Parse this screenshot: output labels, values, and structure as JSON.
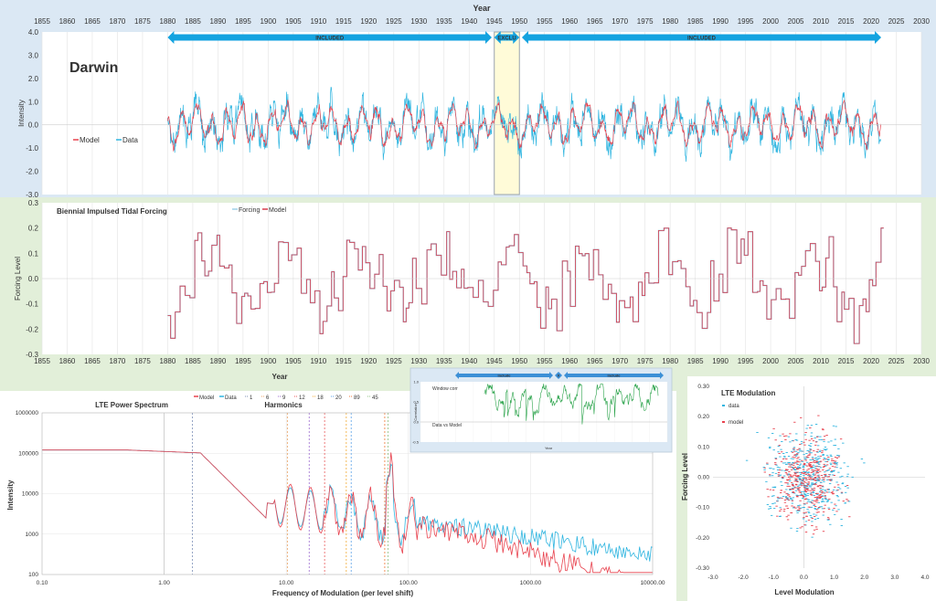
{
  "chart_data": [
    {
      "type": "line",
      "panel": "darwin",
      "title": "Darwin",
      "xlabel": "Year",
      "ylabel": "Intensity",
      "xlim": [
        1855,
        2030
      ],
      "ylim": [
        -3.0,
        4.0
      ],
      "xticks": [
        "1855",
        "1860",
        "1865",
        "1870",
        "1875",
        "1880",
        "1885",
        "1890",
        "1895",
        "1900",
        "1905",
        "1910",
        "1915",
        "1920",
        "1925",
        "1930",
        "1935",
        "1940",
        "1945",
        "1950",
        "1955",
        "1960",
        "1965",
        "1970",
        "1975",
        "1980",
        "1985",
        "1990",
        "1995",
        "2000",
        "2005",
        "2010",
        "2015",
        "2020",
        "2025",
        "2030"
      ],
      "yticks": [
        "4.0",
        "3.0",
        "2.0",
        "1.0",
        "0.0",
        "-1.0",
        "-2.0",
        "-3.0"
      ],
      "series": [
        {
          "name": "Model",
          "color": "#e8424e"
        },
        {
          "name": "Data",
          "color": "#2fb5e0"
        }
      ],
      "x_start": 1880,
      "x_end": 2022,
      "annotations": [
        {
          "text": "INCLUDED",
          "from": 1880,
          "to": 1944.5
        },
        {
          "text": "EXCLU",
          "from": 1945,
          "to": 1950
        },
        {
          "text": "INCLUDED",
          "from": 1950.5,
          "to": 2022
        }
      ],
      "excluded_region": [
        1945,
        1950
      ]
    },
    {
      "type": "line",
      "panel": "forcing",
      "title": "Biennial Impulsed Tidal Forcing",
      "xlabel": "Year",
      "ylabel": "Forcing Level",
      "xlim": [
        1855,
        2030
      ],
      "ylim": [
        -0.3,
        0.3
      ],
      "xticks": [
        "1855",
        "1860",
        "1865",
        "1870",
        "1875",
        "1880",
        "1885",
        "1890",
        "1895",
        "1900",
        "1905",
        "1910",
        "1915",
        "1920",
        "1925",
        "1930",
        "1935",
        "1940",
        "1945",
        "1950",
        "1955",
        "1960",
        "1965",
        "1970",
        "1975",
        "1980",
        "1985",
        "1990",
        "1995",
        "2000",
        "2005",
        "2010",
        "2015",
        "2020",
        "2025",
        "2030"
      ],
      "yticks": [
        "0.3",
        "0.2",
        "0.1",
        "0.0",
        "-0.1",
        "-0.2",
        "-0.3"
      ],
      "series": [
        {
          "name": "Forcing",
          "color": "#9fd0e8"
        },
        {
          "name": "Model",
          "color": "#d93a4a"
        }
      ]
    },
    {
      "type": "line",
      "panel": "spectrum",
      "title": "LTE Power Spectrum",
      "subtitle": "Harmonics",
      "xlabel": "Frequency of Modulation (per level shift)",
      "ylabel": "Intensity",
      "xscale": "log",
      "yscale": "log",
      "xlim": [
        0.1,
        10000
      ],
      "ylim": [
        100,
        1000000
      ],
      "xticks": [
        "0.10",
        "1.00",
        "10.00",
        "100.00",
        "1000.00",
        "10000.00"
      ],
      "yticks": [
        "1000000",
        "100000",
        "10000",
        "1000",
        "100"
      ],
      "series": [
        {
          "name": "Model",
          "color": "#e8424e"
        },
        {
          "name": "Data",
          "color": "#2fb5e0"
        }
      ],
      "harmonics": [
        "1",
        "6",
        "9",
        "12",
        "18",
        "20",
        "89",
        "45"
      ]
    },
    {
      "type": "line",
      "panel": "window",
      "title": "Window corr",
      "xlabel": "Year",
      "ylabel": "Correlation",
      "ylim": [
        -0.5,
        1.0
      ],
      "yticks": [
        "1.0",
        "0.5",
        "0.0",
        "-0.5"
      ],
      "series": [
        {
          "name": "Data vs Model",
          "color": "#2aa34a"
        }
      ],
      "annotations": [
        {
          "text": "include"
        },
        {
          "text": "X"
        },
        {
          "text": "include"
        }
      ]
    },
    {
      "type": "scatter",
      "panel": "lte",
      "title": "LTE Modulation",
      "xlabel": "Level Modulation",
      "ylabel": "Forcing Level",
      "xlim": [
        -3.0,
        4.0
      ],
      "ylim": [
        -0.3,
        0.3
      ],
      "xticks": [
        "-3.0",
        "-2.0",
        "-1.0",
        "0.0",
        "1.0",
        "2.0",
        "3.0",
        "4.0"
      ],
      "yticks": [
        "0.30",
        "0.20",
        "0.10",
        "0.00",
        "-0.10",
        "-0.20",
        "-0.30"
      ],
      "series": [
        {
          "name": "data",
          "color": "#2fb5e0"
        },
        {
          "name": "model",
          "color": "#e8424e"
        }
      ]
    }
  ]
}
